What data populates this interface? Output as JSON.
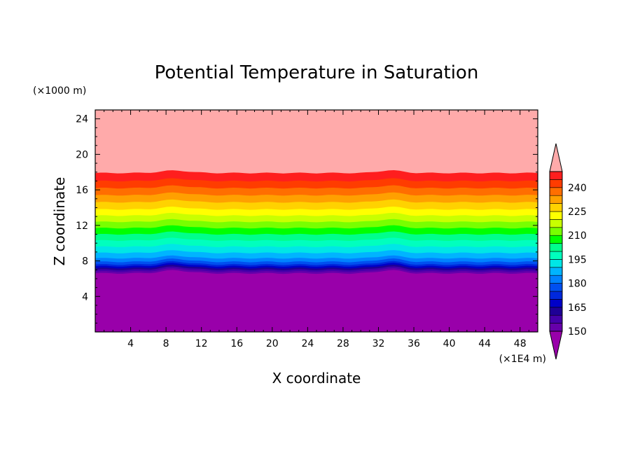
{
  "chart_data": {
    "type": "heatmap",
    "title": "Potential Temperature in Saturation",
    "xlabel": "X coordinate",
    "ylabel": "Z coordinate",
    "x_unit": "(×1E4 m)",
    "y_unit": "(×1000 m)",
    "xlim": [
      0,
      50
    ],
    "ylim": [
      0,
      25
    ],
    "x_ticks": [
      4,
      8,
      12,
      16,
      20,
      24,
      28,
      32,
      36,
      40,
      44,
      48
    ],
    "y_ticks": [
      4,
      8,
      12,
      16,
      20,
      24
    ],
    "colorbar": {
      "levels": [
        150,
        155,
        160,
        165,
        170,
        175,
        180,
        185,
        190,
        195,
        200,
        205,
        210,
        215,
        220,
        225,
        230,
        235,
        240,
        245
      ],
      "tick_labels": [
        150,
        165,
        180,
        195,
        210,
        225,
        240
      ],
      "colors": [
        "#9900aa",
        "#6600aa",
        "#4400aa",
        "#1e0096",
        "#0000c8",
        "#0028dc",
        "#0050f0",
        "#0082ff",
        "#00b4ff",
        "#00e6e6",
        "#00ffbe",
        "#00ff8c",
        "#00ff00",
        "#78ff00",
        "#c8ff00",
        "#ffff00",
        "#ffd200",
        "#ffa000",
        "#ff6e00",
        "#ff3c00",
        "#ff1e1e",
        "#ffaaaa"
      ],
      "extend": "both"
    },
    "bands": [
      {
        "z": 6.6,
        "color": "#9900aa"
      },
      {
        "z": 6.8,
        "color": "#6600aa"
      },
      {
        "z": 7.0,
        "color": "#4400aa"
      },
      {
        "z": 7.2,
        "color": "#1e0096"
      },
      {
        "z": 7.4,
        "color": "#0000c8"
      },
      {
        "z": 7.6,
        "color": "#0028dc"
      },
      {
        "z": 7.9,
        "color": "#0050f0"
      },
      {
        "z": 8.3,
        "color": "#0082ff"
      },
      {
        "z": 8.9,
        "color": "#00b4ff"
      },
      {
        "z": 9.6,
        "color": "#00e6e6"
      },
      {
        "z": 10.3,
        "color": "#00ffbe"
      },
      {
        "z": 11.0,
        "color": "#00ff8c"
      },
      {
        "z": 11.7,
        "color": "#00ff00"
      },
      {
        "z": 12.4,
        "color": "#78ff00"
      },
      {
        "z": 13.1,
        "color": "#c8ff00"
      },
      {
        "z": 13.8,
        "color": "#ffff00"
      },
      {
        "z": 14.6,
        "color": "#ffd200"
      },
      {
        "z": 15.4,
        "color": "#ffa000"
      },
      {
        "z": 16.2,
        "color": "#ff6e00"
      },
      {
        "z": 17.0,
        "color": "#ff3c00"
      },
      {
        "z": 17.9,
        "color": "#ff1e1e"
      },
      {
        "z": 25.0,
        "color": "#ffaaaa"
      }
    ]
  }
}
